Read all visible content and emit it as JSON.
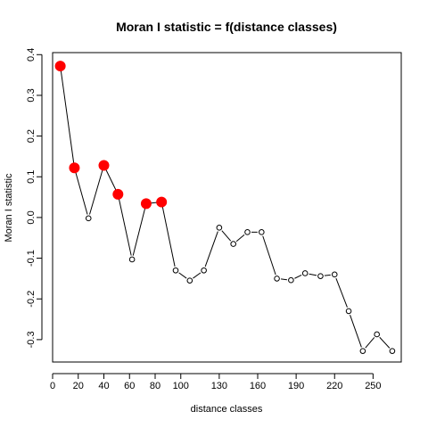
{
  "chart_data": {
    "type": "line",
    "title": "Moran I statistic = f(distance classes)",
    "xlabel": "distance classes",
    "ylabel": "Moran I statistic",
    "xlim": [
      0,
      272
    ],
    "ylim": [
      -0.355,
      0.405
    ],
    "x_ticks": [
      0,
      20,
      40,
      60,
      80,
      100,
      130,
      160,
      190,
      220,
      250
    ],
    "y_ticks": [
      -0.3,
      -0.2,
      -0.1,
      0.0,
      0.1,
      0.2,
      0.3,
      0.4
    ],
    "y_tick_labels": [
      "-0.3",
      "-0.2",
      "-0.1",
      "0.0",
      "0.1",
      "0.2",
      "0.3",
      "0.4"
    ],
    "grid": false,
    "series": [
      {
        "name": "Moran I",
        "x": [
          6,
          17,
          28,
          40,
          51,
          62,
          73,
          85,
          96,
          107,
          118,
          130,
          141,
          152,
          163,
          175,
          186,
          197,
          209,
          220,
          231,
          242,
          253,
          265
        ],
        "y": [
          0.372,
          0.122,
          -0.002,
          0.128,
          0.057,
          -0.103,
          0.034,
          0.038,
          -0.13,
          -0.155,
          -0.13,
          -0.025,
          -0.065,
          -0.036,
          -0.036,
          -0.15,
          -0.154,
          -0.137,
          -0.144,
          -0.14,
          -0.23,
          -0.328,
          -0.287,
          -0.328
        ],
        "significant": [
          true,
          true,
          false,
          true,
          true,
          false,
          true,
          true,
          false,
          false,
          false,
          false,
          false,
          false,
          false,
          false,
          false,
          false,
          false,
          false,
          false,
          false,
          false,
          false
        ]
      }
    ],
    "colors": {
      "significant": "#ff0000",
      "line": "#000000"
    }
  }
}
